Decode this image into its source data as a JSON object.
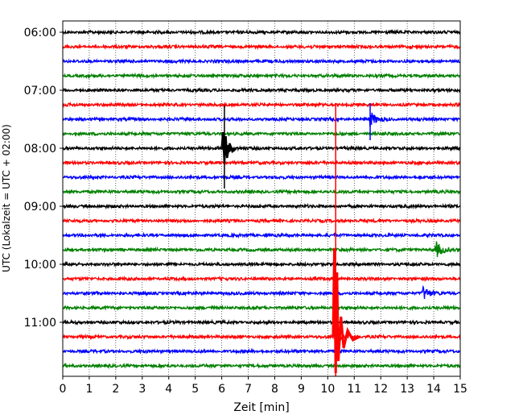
{
  "chart_data": {
    "type": "line",
    "title": "",
    "xlabel": "Zeit  [min]",
    "ylabel": "UTC (Lokalzeit = UTC + 02:00)",
    "xlim": [
      0,
      15
    ],
    "x_ticks": [
      0,
      1,
      2,
      3,
      4,
      5,
      6,
      7,
      8,
      9,
      10,
      11,
      12,
      13,
      14,
      15
    ],
    "y_tick_labels": [
      "06:00",
      "07:00",
      "08:00",
      "09:00",
      "10:00",
      "11:00"
    ],
    "grid": "vertical dotted at each minute",
    "trace_interval_minutes": 15,
    "trace_colors_cycle": [
      "#000000",
      "#ff0000",
      "#0000ff",
      "#008000"
    ],
    "traces": [
      {
        "start": "06:00",
        "color": "#000000"
      },
      {
        "start": "06:15",
        "color": "#ff0000"
      },
      {
        "start": "06:30",
        "color": "#0000ff"
      },
      {
        "start": "06:45",
        "color": "#008000"
      },
      {
        "start": "07:00",
        "color": "#000000"
      },
      {
        "start": "07:15",
        "color": "#ff0000"
      },
      {
        "start": "07:30",
        "color": "#0000ff"
      },
      {
        "start": "07:45",
        "color": "#008000"
      },
      {
        "start": "08:00",
        "color": "#000000"
      },
      {
        "start": "08:15",
        "color": "#ff0000"
      },
      {
        "start": "08:30",
        "color": "#0000ff"
      },
      {
        "start": "08:45",
        "color": "#008000"
      },
      {
        "start": "09:00",
        "color": "#000000"
      },
      {
        "start": "09:15",
        "color": "#ff0000"
      },
      {
        "start": "09:30",
        "color": "#0000ff"
      },
      {
        "start": "09:45",
        "color": "#008000"
      },
      {
        "start": "10:00",
        "color": "#000000"
      },
      {
        "start": "10:15",
        "color": "#ff0000"
      },
      {
        "start": "10:30",
        "color": "#0000ff"
      },
      {
        "start": "10:45",
        "color": "#008000"
      },
      {
        "start": "11:00",
        "color": "#000000"
      },
      {
        "start": "11:15",
        "color": "#ff0000"
      },
      {
        "start": "11:30",
        "color": "#0000ff"
      },
      {
        "start": "11:45",
        "color": "#008000"
      }
    ],
    "events": [
      {
        "trace": "08:00",
        "minute": 6.1,
        "note": "large local event, black trace"
      },
      {
        "trace": "07:30",
        "minute": 11.6,
        "note": "short blue spike"
      },
      {
        "trace": "11:15",
        "minute": 10.3,
        "note": "very large red event spanning many traces"
      },
      {
        "trace": "10:30",
        "minute": 13.6,
        "note": "small blue burst"
      },
      {
        "trace": "09:45",
        "minute": 14.1,
        "note": "small green burst"
      }
    ]
  }
}
